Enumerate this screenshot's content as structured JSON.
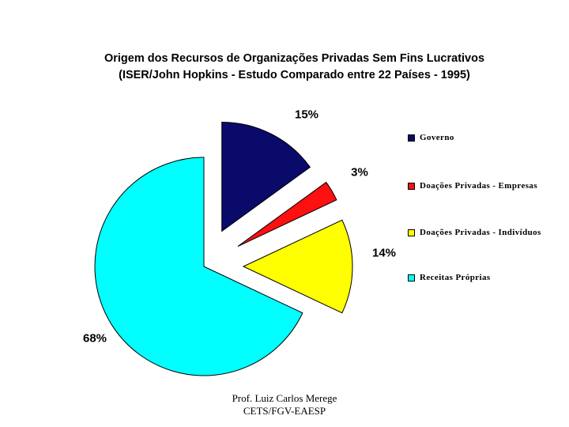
{
  "chart_data": {
    "type": "pie",
    "title": "Origem dos Recursos de Organizações Privadas Sem Fins Lucrativos",
    "subtitle": "(ISER/John Hopkins - Estudo Comparado entre 22 Países - 1995)",
    "categories": [
      "Governo",
      "Doações Privadas - Empresas",
      "Doações Privadas - Indivíduos",
      "Receitas Próprias"
    ],
    "values": [
      15,
      3,
      14,
      68
    ],
    "labels": [
      "15%",
      "3%",
      "14%",
      "68%"
    ],
    "colors": [
      "#0A0A6B",
      "#FF1010",
      "#FFFF00",
      "#00FFFF"
    ],
    "exploded": [
      true,
      true,
      true,
      false
    ],
    "legend_position": "right"
  },
  "footer": {
    "line1": "Prof. Luiz Carlos Merege",
    "line2": "CETS/FGV-EAESP"
  }
}
